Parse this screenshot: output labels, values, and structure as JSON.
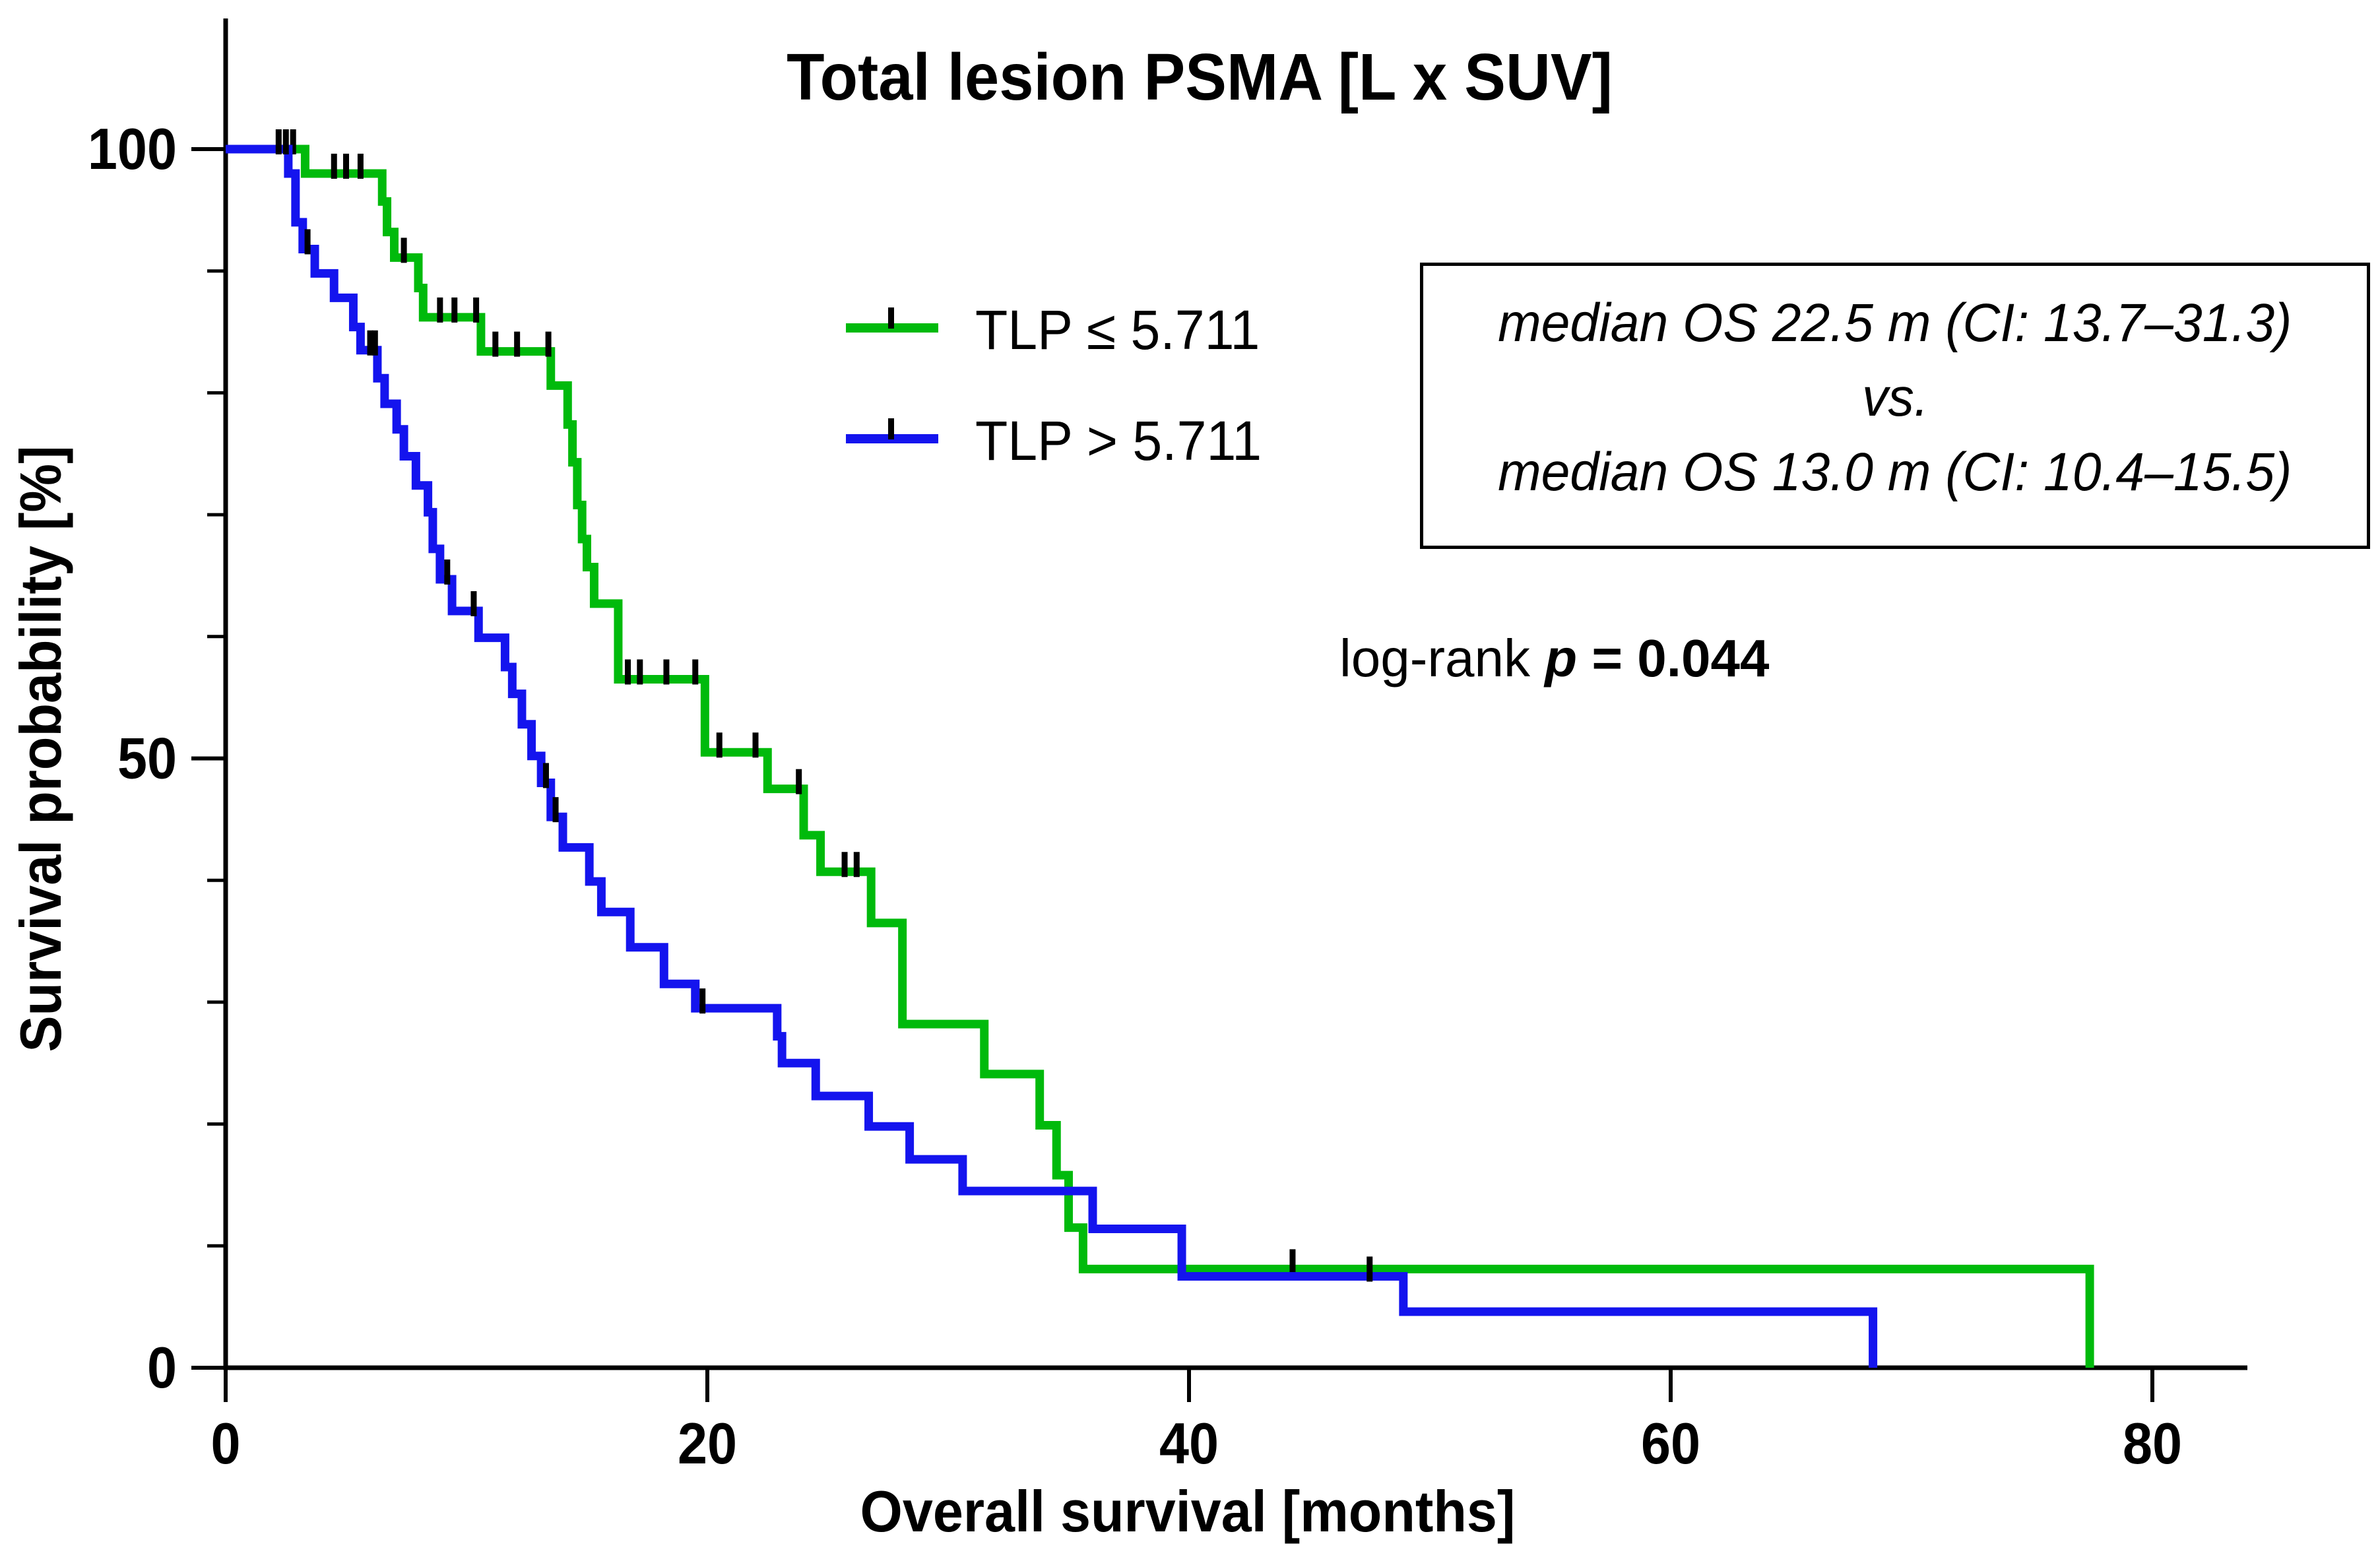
{
  "title": "Total lesion PSMA [L x SUV]",
  "x_axis_label": "Overall survival [months]",
  "y_axis_label": "Survival probability [%]",
  "legend": [
    {
      "label": "TLP ≤ 5.711",
      "color": "#00ba0c"
    },
    {
      "label": "TLP > 5.711",
      "color": "#1414ee"
    }
  ],
  "stats_box": {
    "line1": "median OS  22.5 m (CI: 13.7–31.3)",
    "line2": "vs.",
    "line3": "median OS 13.0 m (CI: 10.4–15.5)"
  },
  "log_rank": {
    "prefix": "log-rank ",
    "p_symbol": "p",
    "value": " = 0.044"
  },
  "chart_data": {
    "type": "line",
    "subtype": "kaplan-meier-step",
    "title": "Total lesion PSMA [L x SUV]",
    "xlabel": "Overall survival [months]",
    "ylabel": "Survival probability [%]",
    "xlim": [
      0,
      84
    ],
    "ylim": [
      0,
      100
    ],
    "x_ticks": [
      0,
      20,
      40,
      60,
      80
    ],
    "y_major_ticks": [
      0,
      50,
      100
    ],
    "y_minor_ticks": [
      10,
      20,
      30,
      40,
      60,
      70,
      80,
      90
    ],
    "grid": false,
    "legend_position": "upper-center-left",
    "series": [
      {
        "name": "TLP ≤ 5.711",
        "color": "#00ba0c",
        "steps": [
          [
            0,
            100
          ],
          [
            3.3,
            98.0
          ],
          [
            6.5,
            95.7
          ],
          [
            6.7,
            93.2
          ],
          [
            7.0,
            91.1
          ],
          [
            8.0,
            88.6
          ],
          [
            8.2,
            86.2
          ],
          [
            10.6,
            83.4
          ],
          [
            13.5,
            80.6
          ],
          [
            14.2,
            77.4
          ],
          [
            14.4,
            74.3
          ],
          [
            14.6,
            70.8
          ],
          [
            14.8,
            68.0
          ],
          [
            15.0,
            65.7
          ],
          [
            15.3,
            62.7
          ],
          [
            16.3,
            56.5
          ],
          [
            19.9,
            50.5
          ],
          [
            22.5,
            47.5
          ],
          [
            24.0,
            43.7
          ],
          [
            24.7,
            40.7
          ],
          [
            26.8,
            36.5
          ],
          [
            28.1,
            28.2
          ],
          [
            31.5,
            24.1
          ],
          [
            33.8,
            19.9
          ],
          [
            34.5,
            15.8
          ],
          [
            35.0,
            11.5
          ],
          [
            35.6,
            8.1
          ],
          [
            77.4,
            0
          ]
        ],
        "censor_marks": [
          [
            2.8,
            100
          ],
          [
            4.5,
            98.0
          ],
          [
            5.0,
            98.0
          ],
          [
            5.6,
            98.0
          ],
          [
            7.4,
            91.1
          ],
          [
            8.9,
            86.2
          ],
          [
            9.5,
            86.2
          ],
          [
            10.4,
            86.2
          ],
          [
            11.2,
            83.4
          ],
          [
            12.1,
            83.4
          ],
          [
            13.4,
            83.4
          ],
          [
            16.7,
            56.5
          ],
          [
            17.2,
            56.5
          ],
          [
            18.3,
            56.5
          ],
          [
            19.5,
            56.5
          ],
          [
            20.5,
            50.5
          ],
          [
            22.0,
            50.5
          ],
          [
            23.8,
            47.5
          ],
          [
            25.7,
            40.7
          ],
          [
            26.2,
            40.7
          ],
          [
            44.3,
            8.1
          ]
        ],
        "median_os_months": 22.5,
        "median_os_ci": "13.7-31.3"
      },
      {
        "name": "TLP > 5.711",
        "color": "#1414ee",
        "steps": [
          [
            0,
            100
          ],
          [
            2.6,
            98.0
          ],
          [
            2.9,
            94.0
          ],
          [
            3.2,
            91.8
          ],
          [
            3.7,
            89.8
          ],
          [
            4.5,
            87.8
          ],
          [
            5.3,
            85.4
          ],
          [
            5.6,
            83.5
          ],
          [
            6.3,
            81.2
          ],
          [
            6.6,
            79.1
          ],
          [
            7.1,
            77.0
          ],
          [
            7.4,
            74.8
          ],
          [
            7.9,
            72.4
          ],
          [
            8.4,
            70.2
          ],
          [
            8.6,
            67.2
          ],
          [
            8.9,
            64.7
          ],
          [
            9.4,
            62.1
          ],
          [
            10.5,
            59.9
          ],
          [
            11.6,
            57.5
          ],
          [
            11.9,
            55.3
          ],
          [
            12.3,
            52.8
          ],
          [
            12.7,
            50.2
          ],
          [
            13.1,
            48.0
          ],
          [
            13.5,
            45.2
          ],
          [
            14.0,
            42.7
          ],
          [
            15.1,
            39.9
          ],
          [
            15.6,
            37.4
          ],
          [
            16.8,
            34.5
          ],
          [
            18.2,
            31.5
          ],
          [
            19.5,
            29.5
          ],
          [
            22.9,
            27.2
          ],
          [
            23.1,
            25.0
          ],
          [
            24.5,
            22.3
          ],
          [
            26.7,
            19.8
          ],
          [
            28.4,
            17.1
          ],
          [
            30.6,
            14.5
          ],
          [
            36.0,
            11.4
          ],
          [
            39.7,
            7.5
          ],
          [
            48.9,
            4.6
          ],
          [
            68.4,
            0
          ]
        ],
        "censor_marks": [
          [
            2.2,
            100
          ],
          [
            2.5,
            100
          ],
          [
            3.4,
            91.8
          ],
          [
            6.0,
            83.5
          ],
          [
            6.2,
            83.5
          ],
          [
            9.2,
            64.7
          ],
          [
            10.3,
            62.1
          ],
          [
            13.3,
            48.0
          ],
          [
            13.7,
            45.2
          ],
          [
            19.8,
            29.5
          ],
          [
            47.5,
            7.5
          ]
        ],
        "median_os_months": 13.0,
        "median_os_ci": "10.4-15.5"
      }
    ],
    "annotations": {
      "log_rank_p": 0.044
    }
  }
}
